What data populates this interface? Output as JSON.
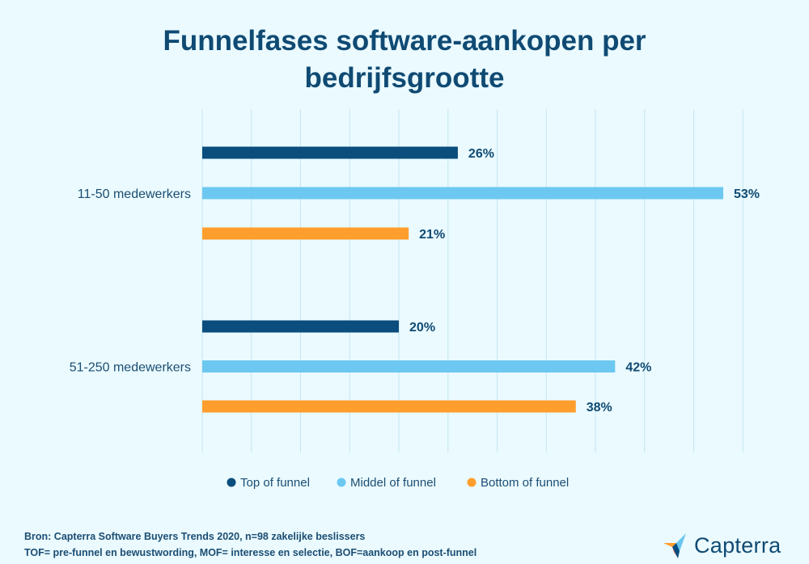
{
  "chart_data": {
    "type": "bar",
    "orientation": "horizontal",
    "title": "Funnelfases software-aankopen per bedrijfsgrootte",
    "title_lines": [
      "Funnelfases software-aankopen per",
      "bedrijfsgrootte"
    ],
    "categories": [
      "11-50 medewerkers",
      "51-250 medewerkers"
    ],
    "series": [
      {
        "name": "Top of funnel",
        "values": [
          26,
          20
        ],
        "labels": [
          "26%",
          "20%"
        ],
        "color": "#0b4d7c"
      },
      {
        "name": "Middel of funnel",
        "values": [
          53,
          42
        ],
        "labels": [
          "53%",
          "42%"
        ],
        "color": "#6cc8f0"
      },
      {
        "name": "Bottom of funnel",
        "values": [
          21,
          38
        ],
        "labels": [
          "21%",
          "38%"
        ],
        "color": "#ff9e2c"
      }
    ],
    "xlim": [
      0,
      55
    ],
    "grid": true,
    "legend_position": "bottom",
    "xlabel": "",
    "ylabel": ""
  },
  "footer": {
    "source": "Bron: Capterra Software Buyers Trends 2020, n=98 zakelijke beslissers",
    "definitions": "TOF= pre-funnel en bewustwording, MOF= interesse en selectie, BOF=aankoop en post-funnel"
  },
  "logo": {
    "text": "Capterra",
    "colors": [
      "#ff9d28",
      "#68c5ed",
      "#044d80",
      "#e54747"
    ]
  },
  "colors": {
    "background": "#eafaff",
    "gridline": "#c5e6f2",
    "title": "#0f4a73"
  }
}
